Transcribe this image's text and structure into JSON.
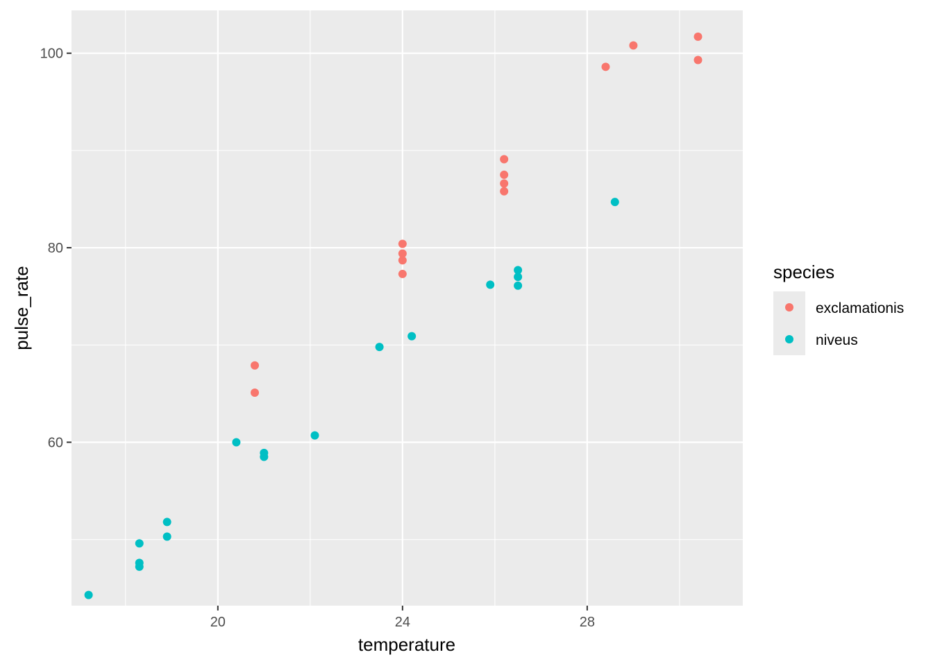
{
  "chart_data": {
    "type": "scatter",
    "xlabel": "temperature",
    "ylabel": "pulse_rate",
    "xlim": [
      16.83,
      31.37
    ],
    "ylim": [
      43.2,
      104.4
    ],
    "x_ticks": [
      20,
      24,
      28
    ],
    "x_minor_ticks": [
      18,
      22,
      26,
      30
    ],
    "y_ticks": [
      60,
      80,
      100
    ],
    "y_minor_ticks": [
      50,
      70,
      90
    ],
    "grid": true,
    "legend": {
      "title": "species",
      "position": "right"
    },
    "series": [
      {
        "name": "exclamationis",
        "color": "#F8766D",
        "points": [
          [
            20.8,
            67.9
          ],
          [
            20.8,
            65.1
          ],
          [
            24.0,
            77.3
          ],
          [
            24.0,
            78.7
          ],
          [
            24.0,
            79.4
          ],
          [
            24.0,
            80.4
          ],
          [
            26.2,
            85.8
          ],
          [
            26.2,
            86.6
          ],
          [
            26.2,
            87.5
          ],
          [
            26.2,
            89.1
          ],
          [
            28.4,
            98.6
          ],
          [
            29.0,
            100.8
          ],
          [
            30.4,
            99.3
          ],
          [
            30.4,
            101.7
          ]
        ]
      },
      {
        "name": "niveus",
        "color": "#00BFC4",
        "points": [
          [
            17.2,
            44.3
          ],
          [
            18.3,
            47.2
          ],
          [
            18.3,
            47.6
          ],
          [
            18.3,
            49.6
          ],
          [
            18.9,
            50.3
          ],
          [
            18.9,
            51.8
          ],
          [
            20.4,
            60.0
          ],
          [
            21.0,
            58.5
          ],
          [
            21.0,
            58.9
          ],
          [
            22.1,
            60.7
          ],
          [
            23.5,
            69.8
          ],
          [
            24.2,
            70.9
          ],
          [
            25.9,
            76.2
          ],
          [
            26.5,
            76.1
          ],
          [
            26.5,
            77.0
          ],
          [
            26.5,
            77.7
          ],
          [
            28.6,
            84.7
          ]
        ]
      }
    ]
  }
}
